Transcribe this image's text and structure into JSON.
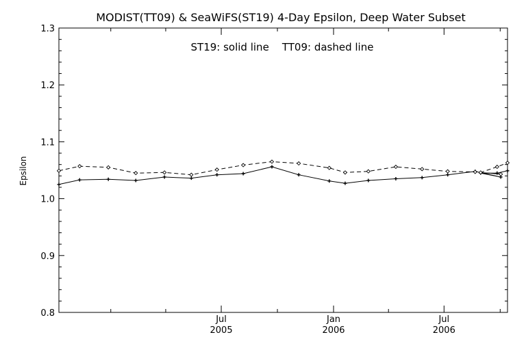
{
  "chart_data": {
    "type": "line",
    "title": "MODIST(TT09) & SeaWiFS(ST19) 4-Day Epsilon, Deep Water Subset",
    "annotation": "ST19: solid line    TT09: dashed line",
    "ylabel": "Epsilon",
    "xlabel": "",
    "ylim": [
      0.8,
      1.3
    ],
    "yticks": [
      "0.8",
      "0.9",
      "1.0",
      "1.1",
      "1.2",
      "1.3"
    ],
    "xlim": [
      "2004-10-08",
      "2006-10-13"
    ],
    "xticks": [
      {
        "month": "Jul",
        "year": "2005",
        "date": "2005-07-01"
      },
      {
        "month": "Jan",
        "year": "2006",
        "date": "2006-01-01"
      },
      {
        "month": "Jul",
        "year": "2006",
        "date": "2006-07-01"
      }
    ],
    "x": [
      "2004-10-08",
      "2004-11-11",
      "2004-12-28",
      "2005-02-11",
      "2005-03-30",
      "2005-05-13",
      "2005-06-24",
      "2005-08-06",
      "2005-09-22",
      "2005-11-05",
      "2005-12-25",
      "2006-01-20",
      "2006-02-27",
      "2006-04-13",
      "2006-05-26",
      "2006-07-07",
      "2006-08-21",
      "2006-10-02"
    ],
    "series": [
      {
        "name": "ST19",
        "style": "solid",
        "values": [
          1.025,
          1.033,
          1.034,
          1.032,
          1.038,
          1.036,
          1.042,
          1.044,
          1.056,
          1.042,
          1.031,
          1.027,
          1.032,
          1.035,
          1.037,
          1.042,
          1.048,
          1.038
        ]
      },
      {
        "name": "TT09",
        "style": "dashed",
        "values": [
          1.049,
          1.057,
          1.055,
          1.045,
          1.046,
          1.042,
          1.051,
          1.059,
          1.065,
          1.062,
          1.054,
          1.046,
          1.048,
          1.056,
          1.052,
          1.048,
          1.047,
          1.043
        ]
      }
    ],
    "series_tail": {
      "ST19": {
        "x": [
          "2006-08-30",
          "2006-09-26",
          "2006-10-13"
        ],
        "values": [
          1.045,
          1.045,
          1.049
        ]
      },
      "TT09": {
        "x": [
          "2006-08-30",
          "2006-09-26",
          "2006-10-13"
        ],
        "values": [
          1.046,
          1.056,
          1.063
        ]
      }
    },
    "grid": false,
    "legend": "none"
  }
}
